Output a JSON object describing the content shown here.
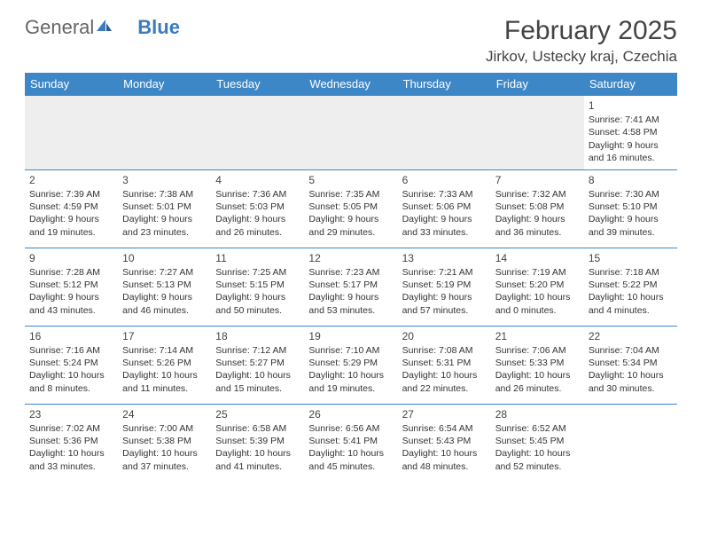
{
  "logo": {
    "text1": "General",
    "text2": "Blue"
  },
  "title": "February 2025",
  "location": "Jirkov, Ustecky kraj, Czechia",
  "colors": {
    "header_bg": "#3d87c7",
    "header_text": "#ffffff",
    "row_shade": "#eeeeee",
    "border": "#3d87c7",
    "logo_blue": "#3a7bbf"
  },
  "days_of_week": [
    "Sunday",
    "Monday",
    "Tuesday",
    "Wednesday",
    "Thursday",
    "Friday",
    "Saturday"
  ],
  "weeks": [
    [
      null,
      null,
      null,
      null,
      null,
      null,
      {
        "n": "1",
        "sr": "7:41 AM",
        "ss": "4:58 PM",
        "dl": "9 hours and 16 minutes."
      }
    ],
    [
      {
        "n": "2",
        "sr": "7:39 AM",
        "ss": "4:59 PM",
        "dl": "9 hours and 19 minutes."
      },
      {
        "n": "3",
        "sr": "7:38 AM",
        "ss": "5:01 PM",
        "dl": "9 hours and 23 minutes."
      },
      {
        "n": "4",
        "sr": "7:36 AM",
        "ss": "5:03 PM",
        "dl": "9 hours and 26 minutes."
      },
      {
        "n": "5",
        "sr": "7:35 AM",
        "ss": "5:05 PM",
        "dl": "9 hours and 29 minutes."
      },
      {
        "n": "6",
        "sr": "7:33 AM",
        "ss": "5:06 PM",
        "dl": "9 hours and 33 minutes."
      },
      {
        "n": "7",
        "sr": "7:32 AM",
        "ss": "5:08 PM",
        "dl": "9 hours and 36 minutes."
      },
      {
        "n": "8",
        "sr": "7:30 AM",
        "ss": "5:10 PM",
        "dl": "9 hours and 39 minutes."
      }
    ],
    [
      {
        "n": "9",
        "sr": "7:28 AM",
        "ss": "5:12 PM",
        "dl": "9 hours and 43 minutes."
      },
      {
        "n": "10",
        "sr": "7:27 AM",
        "ss": "5:13 PM",
        "dl": "9 hours and 46 minutes."
      },
      {
        "n": "11",
        "sr": "7:25 AM",
        "ss": "5:15 PM",
        "dl": "9 hours and 50 minutes."
      },
      {
        "n": "12",
        "sr": "7:23 AM",
        "ss": "5:17 PM",
        "dl": "9 hours and 53 minutes."
      },
      {
        "n": "13",
        "sr": "7:21 AM",
        "ss": "5:19 PM",
        "dl": "9 hours and 57 minutes."
      },
      {
        "n": "14",
        "sr": "7:19 AM",
        "ss": "5:20 PM",
        "dl": "10 hours and 0 minutes."
      },
      {
        "n": "15",
        "sr": "7:18 AM",
        "ss": "5:22 PM",
        "dl": "10 hours and 4 minutes."
      }
    ],
    [
      {
        "n": "16",
        "sr": "7:16 AM",
        "ss": "5:24 PM",
        "dl": "10 hours and 8 minutes."
      },
      {
        "n": "17",
        "sr": "7:14 AM",
        "ss": "5:26 PM",
        "dl": "10 hours and 11 minutes."
      },
      {
        "n": "18",
        "sr": "7:12 AM",
        "ss": "5:27 PM",
        "dl": "10 hours and 15 minutes."
      },
      {
        "n": "19",
        "sr": "7:10 AM",
        "ss": "5:29 PM",
        "dl": "10 hours and 19 minutes."
      },
      {
        "n": "20",
        "sr": "7:08 AM",
        "ss": "5:31 PM",
        "dl": "10 hours and 22 minutes."
      },
      {
        "n": "21",
        "sr": "7:06 AM",
        "ss": "5:33 PM",
        "dl": "10 hours and 26 minutes."
      },
      {
        "n": "22",
        "sr": "7:04 AM",
        "ss": "5:34 PM",
        "dl": "10 hours and 30 minutes."
      }
    ],
    [
      {
        "n": "23",
        "sr": "7:02 AM",
        "ss": "5:36 PM",
        "dl": "10 hours and 33 minutes."
      },
      {
        "n": "24",
        "sr": "7:00 AM",
        "ss": "5:38 PM",
        "dl": "10 hours and 37 minutes."
      },
      {
        "n": "25",
        "sr": "6:58 AM",
        "ss": "5:39 PM",
        "dl": "10 hours and 41 minutes."
      },
      {
        "n": "26",
        "sr": "6:56 AM",
        "ss": "5:41 PM",
        "dl": "10 hours and 45 minutes."
      },
      {
        "n": "27",
        "sr": "6:54 AM",
        "ss": "5:43 PM",
        "dl": "10 hours and 48 minutes."
      },
      {
        "n": "28",
        "sr": "6:52 AM",
        "ss": "5:45 PM",
        "dl": "10 hours and 52 minutes."
      },
      null
    ]
  ],
  "labels": {
    "sunrise": "Sunrise:",
    "sunset": "Sunset:",
    "daylight": "Daylight:"
  }
}
